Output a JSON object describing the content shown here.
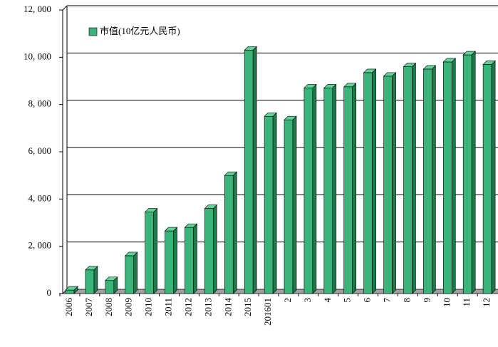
{
  "chart_data": {
    "type": "bar3d",
    "categories": [
      "2006",
      "2007",
      "2008",
      "2009",
      "2010",
      "2011",
      "2012",
      "2013",
      "2014",
      "2015",
      "201601",
      "2",
      "3",
      "4",
      "5",
      "6",
      "7",
      "8",
      "9",
      "10",
      "11",
      "12"
    ],
    "series": [
      {
        "name": "市值(10亿元人民币)",
        "color": "#3cb37a",
        "values": [
          150,
          1000,
          550,
          1600,
          3450,
          2650,
          2800,
          3600,
          5000,
          10300,
          7500,
          7350,
          8700,
          8700,
          8750,
          9350,
          9200,
          9600,
          9500,
          9800,
          10100,
          9700
        ]
      }
    ],
    "ylim": [
      0,
      12000
    ],
    "yticks": [
      0,
      {
        "value": 2000,
        "label": "2, 000"
      },
      {
        "value": 4000,
        "label": "4, 000"
      },
      {
        "value": 6000,
        "label": "6, 000"
      },
      {
        "value": 8000,
        "label": "8, 000"
      },
      {
        "value": 10000,
        "label": "10, 000"
      },
      {
        "value": 12000,
        "label": "12, 000"
      }
    ],
    "grid": true
  }
}
